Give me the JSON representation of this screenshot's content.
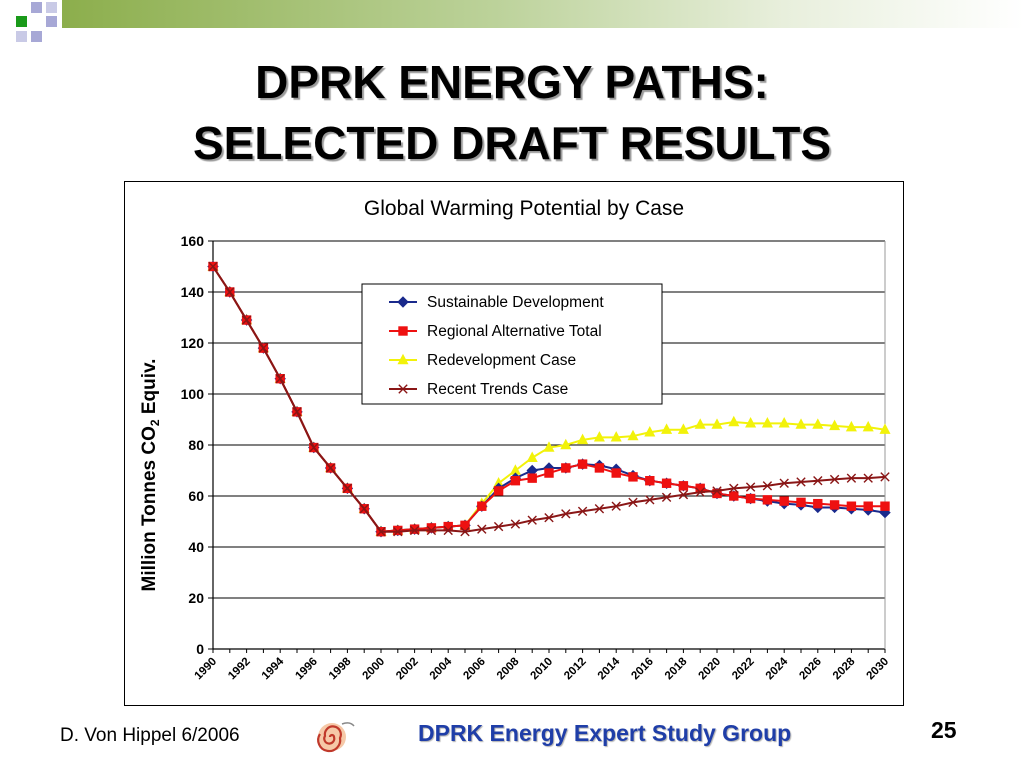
{
  "slide": {
    "title_line1": "DPRK ENERGY PATHS:",
    "title_line2": "SELECTED DRAFT RESULTS",
    "author": "D. Von Hippel  6/2006",
    "group": "DPRK Energy Expert Study Group",
    "page_number": "25",
    "colors": {
      "green": "#1a9a1a",
      "lavender": "#a7a8d6",
      "accent_bar": "#8cae4c",
      "group_text": "#1f3ea8"
    }
  },
  "chart_data": {
    "type": "line",
    "title": "Global Warming Potential by Case",
    "ylabel_prefix": "Million Tonnes CO",
    "ylabel_subscript": "2",
    "ylabel_suffix": " Equiv.",
    "ylim": [
      0,
      160
    ],
    "yticks": [
      0,
      20,
      40,
      60,
      80,
      100,
      120,
      140,
      160
    ],
    "xlim": [
      1990,
      2030
    ],
    "xtick_labels": [
      "1990",
      "1992",
      "1994",
      "1996",
      "1998",
      "2000",
      "2002",
      "2004",
      "2006",
      "2008",
      "2010",
      "2012",
      "2014",
      "2016",
      "2018",
      "2020",
      "2022",
      "2024",
      "2026",
      "2028",
      "2030"
    ],
    "grid": "horizontal",
    "legend_position": "top-right",
    "x": [
      1990,
      1991,
      1992,
      1993,
      1994,
      1995,
      1996,
      1997,
      1998,
      1999,
      2000,
      2001,
      2002,
      2003,
      2004,
      2005,
      2006,
      2007,
      2008,
      2009,
      2010,
      2011,
      2012,
      2013,
      2014,
      2015,
      2016,
      2017,
      2018,
      2019,
      2020,
      2021,
      2022,
      2023,
      2024,
      2025,
      2026,
      2027,
      2028,
      2029,
      2030
    ],
    "series": [
      {
        "name": "Sustainable Development",
        "color": "#1a2a8c",
        "marker": "diamond",
        "values": [
          150,
          140,
          129,
          118,
          106,
          93,
          79,
          71,
          63,
          55,
          46,
          46.5,
          47,
          47.5,
          48,
          48.5,
          56,
          63,
          67,
          70,
          71,
          71,
          72.5,
          72,
          70.5,
          68,
          66,
          65,
          64,
          63,
          61,
          60,
          59,
          58,
          57,
          56.5,
          55.5,
          55.5,
          55,
          54.5,
          53.5
        ]
      },
      {
        "name": "Regional Alternative Total",
        "color": "#ee1111",
        "marker": "square",
        "values": [
          150,
          140,
          129,
          118,
          106,
          93,
          79,
          71,
          63,
          55,
          46,
          46.5,
          47,
          47.5,
          48,
          48.5,
          56,
          62,
          66,
          67,
          69,
          71,
          72.5,
          71,
          69,
          67.5,
          66,
          65,
          64,
          63,
          61,
          60,
          59,
          58.5,
          58,
          57.5,
          57,
          56.5,
          56,
          56,
          56
        ]
      },
      {
        "name": "Redevelopment Case",
        "color": "#f2f20a",
        "marker": "triangle",
        "values": [
          150,
          140,
          129,
          118,
          106,
          93,
          79,
          71,
          63,
          55,
          46,
          46.5,
          47,
          47.5,
          48,
          48.5,
          57,
          65,
          70,
          75,
          79,
          80,
          82,
          83,
          83,
          83.5,
          85,
          86,
          86,
          88,
          88,
          89,
          88.5,
          88.5,
          88.5,
          88,
          88,
          87.5,
          87,
          87,
          86
        ]
      },
      {
        "name": "Recent Trends Case",
        "color": "#8a1616",
        "marker": "x",
        "values": [
          150,
          140,
          129,
          118,
          106,
          93,
          79,
          71,
          63,
          55,
          46,
          46,
          46.5,
          46.5,
          46.5,
          46,
          47,
          48,
          49,
          50.5,
          51.5,
          53,
          54,
          55,
          56,
          57.5,
          58.5,
          59.5,
          60.5,
          61.5,
          62,
          63,
          63.5,
          64,
          65,
          65.5,
          66,
          66.5,
          67,
          67,
          67.5
        ]
      }
    ]
  }
}
